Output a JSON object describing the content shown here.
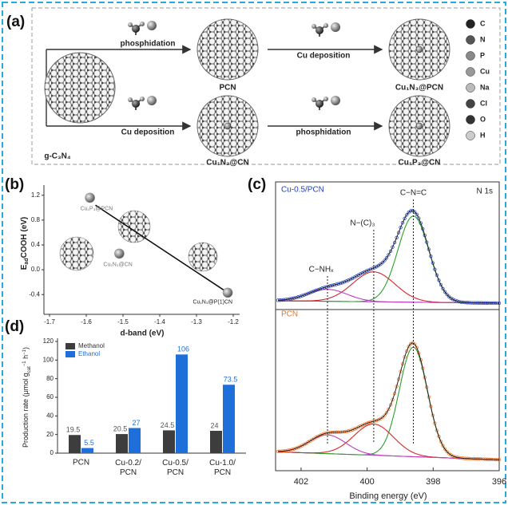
{
  "figure": {
    "panel_labels": [
      "(a)",
      "(b)",
      "(c)",
      "(d)"
    ]
  },
  "scheme": {
    "start": "g-C₃N₄",
    "top_arrows": [
      "phosphidation",
      "Cu deposition"
    ],
    "bottom_arrows": [
      "Cu deposition",
      "phosphidation"
    ],
    "top_products": [
      "PCN",
      "Cu₁N₃@PCN"
    ],
    "bottom_products": [
      "Cu₁N₃@CN",
      "Cu₁P₃@CN"
    ],
    "legend": [
      "C",
      "N",
      "P",
      "Cu",
      "Na",
      "Cl",
      "O",
      "H"
    ]
  },
  "chart_data": [
    {
      "type": "scatter",
      "x_label": "d-band (eV)",
      "y_label_parts": [
        "E",
        "ad",
        "COOH (eV)"
      ],
      "x": [
        -1.59,
        -1.51,
        -1.215
      ],
      "values": [
        1.16,
        0.26,
        -0.37
      ],
      "point_labels": [
        "Cu₁P₃@PCN",
        "Cu₁N₃@CN",
        "Cu₁N₃@P(1)CN"
      ],
      "color": "#8c8c8c",
      "fit_line": {
        "x": [
          -1.575,
          -1.22
        ],
        "values": [
          1.04,
          -0.35
        ]
      },
      "xlim": [
        -1.7,
        -1.2
      ],
      "xticks": [
        -1.7,
        -1.6,
        -1.5,
        -1.4,
        -1.3,
        -1.2
      ],
      "ylim": [
        -0.5,
        1.3
      ],
      "yticks": [
        -0.4,
        {
          "value": 0,
          "label": "0.0"
        },
        0.4,
        0.8,
        1.2
      ]
    },
    {
      "type": "xps",
      "x_label": "Binding energy (eV)",
      "core_level": "N 1s",
      "xlim": [
        402.7,
        396
      ],
      "xticks": [
        402,
        400,
        398,
        396
      ],
      "ylim": [
        0,
        1
      ],
      "panels": [
        {
          "name": "Cu-0.5/PCN",
          "color": "#1f3fbf",
          "background": [
            0.06,
            0.04
          ],
          "components": [
            {
              "name": "C−N=C",
              "center": 398.6,
              "fwhm": 1.1,
              "height": 0.72,
              "color": "#2ca02c"
            },
            {
              "name": "N−(C)₃",
              "center": 399.8,
              "fwhm": 1.5,
              "height": 0.25,
              "color": "#d62728"
            },
            {
              "name": "C−NHₓ",
              "center": 401.2,
              "fwhm": 1.4,
              "height": 0.1,
              "color": "#c03cc0"
            }
          ]
        },
        {
          "name": "PCN",
          "color": "#f07020",
          "background": [
            0.11,
            0.06
          ],
          "components": [
            {
              "center": 398.6,
              "fwhm": 1.0,
              "height": 0.7,
              "color": "#2ca02c"
            },
            {
              "center": 399.8,
              "fwhm": 1.4,
              "height": 0.2,
              "color": "#d62728"
            },
            {
              "center": 401.2,
              "fwhm": 1.3,
              "height": 0.12,
              "color": "#c03cc0"
            }
          ]
        }
      ]
    },
    {
      "type": "bar",
      "y_label_parts": [
        "Production rate (μmol g",
        "cat",
        "−1",
        " h",
        "−1",
        ")"
      ],
      "categories": [
        "PCN",
        "Cu-0.2/PCN",
        "Cu-0.5/PCN",
        "Cu-1.0/PCN"
      ],
      "series": [
        {
          "name": "Methanol",
          "color": "#3d3d3d",
          "values": [
            19.5,
            20.5,
            24.5,
            24
          ]
        },
        {
          "name": "Ethanol",
          "color": "#1e6fd9",
          "values": [
            5.5,
            27,
            106,
            73.5
          ]
        }
      ],
      "ylim": [
        0,
        120
      ],
      "yticks": [
        0,
        20,
        40,
        60,
        80,
        100,
        120
      ],
      "legend": "top-left"
    }
  ]
}
